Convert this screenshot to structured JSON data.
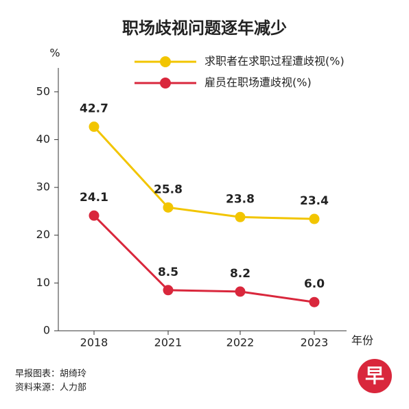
{
  "chart_data": {
    "type": "line",
    "title": "职场歧视问题逐年减少",
    "y_label": "%",
    "x_label": "年份",
    "categories": [
      "2018",
      "2021",
      "2022",
      "2023"
    ],
    "series": [
      {
        "name": "求职者在求职过程遭歧视(%)",
        "color": "#f2c500",
        "values": [
          42.7,
          25.8,
          23.8,
          23.4
        ],
        "value_labels": [
          "42.7",
          "25.8",
          "23.8",
          "23.4"
        ]
      },
      {
        "name": "雇员在职场遭歧视(%)",
        "color": "#d9273c",
        "values": [
          24.1,
          8.5,
          8.2,
          6.0
        ],
        "value_labels": [
          "24.1",
          "8.5",
          "8.2",
          "6.0"
        ]
      }
    ],
    "ylim": [
      0,
      55
    ],
    "yticks": [
      0,
      10,
      20,
      30,
      40,
      50
    ],
    "legend": "top-right",
    "notes": [
      "早报图表：胡绮玲",
      "资料来源：人力部"
    ],
    "logo": "早"
  }
}
